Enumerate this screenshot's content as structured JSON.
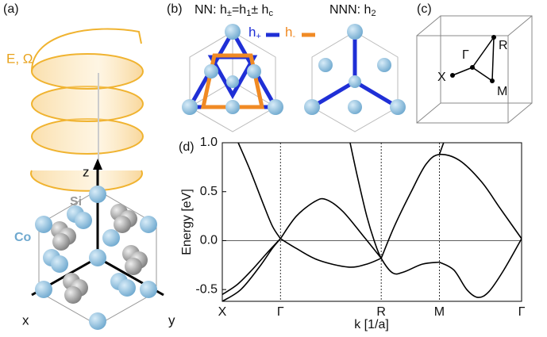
{
  "panels": {
    "a": {
      "label": "(a)",
      "field": "E, Ω",
      "z": "z",
      "x": "x",
      "y": "y",
      "si": "Si",
      "co": "Co"
    },
    "b": {
      "label": "(b)",
      "nn": [
        "NN: h",
        "±",
        "=h",
        "1",
        "± h",
        "c"
      ],
      "hplus": [
        "h",
        "+"
      ],
      "hminus": [
        "h",
        "-"
      ],
      "nnn": [
        "NNN: h",
        "2"
      ]
    },
    "c": {
      "label": "(c)",
      "gamma": "Γ",
      "r": "R",
      "x": "X",
      "m": "M"
    },
    "d": {
      "label": "(d)"
    }
  },
  "chart_data": {
    "type": "line",
    "x_label": "k [1/a]",
    "y_label": "Energy [eV]",
    "xlim": [
      0,
      16.16
    ],
    "ylim": [
      -0.62,
      1.0
    ],
    "xticks": [
      {
        "value": 0,
        "label": "X"
      },
      {
        "value": 3.14,
        "label": "Γ"
      },
      {
        "value": 8.58,
        "label": "R"
      },
      {
        "value": 11.72,
        "label": "M"
      },
      {
        "value": 16.16,
        "label": "Γ"
      }
    ],
    "yticks": [
      -0.5,
      {
        "value": 0,
        "label": "0.0"
      },
      0.5,
      {
        "value": 1,
        "label": "1.0"
      }
    ],
    "xgrid": true,
    "zero_line": true,
    "series": [
      {
        "color": "#000000",
        "x": [
          0.86,
          1.5,
          2.2,
          2.7,
          3.14
        ],
        "values": [
          1.0,
          0.72,
          0.38,
          0.15,
          0.02
        ]
      },
      {
        "color": "#000000",
        "x": [
          0,
          0.8,
          1.6,
          2.4,
          3.14
        ],
        "values": [
          -0.55,
          -0.45,
          -0.3,
          -0.13,
          0.02
        ]
      },
      {
        "color": "#000000",
        "x": [
          0,
          1.0,
          2.0,
          2.7,
          3.14
        ],
        "values": [
          -0.62,
          -0.5,
          -0.27,
          -0.08,
          0.02
        ]
      },
      {
        "color": "#000000",
        "x": [
          3.14,
          4.0,
          5.0,
          5.6,
          6.5,
          7.6,
          8.58
        ],
        "values": [
          0.02,
          0.25,
          0.4,
          0.42,
          0.3,
          0.05,
          -0.18
        ]
      },
      {
        "color": "#000000",
        "x": [
          3.14,
          4.0,
          5.2,
          6.8,
          7.8,
          8.58
        ],
        "values": [
          0.02,
          -0.08,
          -0.2,
          -0.27,
          -0.24,
          -0.18
        ]
      },
      {
        "color": "#000000",
        "x": [
          6.9,
          7.3,
          7.8,
          8.2,
          8.58,
          9.2,
          9.8,
          10.8,
          11.72
        ],
        "values": [
          1.0,
          0.65,
          0.25,
          0.0,
          -0.18,
          -0.33,
          -0.32,
          -0.24,
          -0.22
        ]
      },
      {
        "color": "#000000",
        "x": [
          8.58,
          9.3,
          10.2,
          11.0,
          11.72,
          12.8,
          14.0,
          15.0,
          16.16
        ],
        "values": [
          -0.18,
          0.15,
          0.5,
          0.78,
          0.88,
          0.82,
          0.6,
          0.33,
          0.02
        ]
      },
      {
        "color": "#000000",
        "x": [
          11.72,
          12.5,
          13.2,
          13.8,
          14.4,
          15.2,
          16.16
        ],
        "values": [
          -0.22,
          -0.3,
          -0.5,
          -0.58,
          -0.52,
          -0.3,
          0.02
        ]
      },
      {
        "color": "#000000",
        "x": [
          11.72,
          11.95
        ],
        "values": [
          0.88,
          1.0
        ]
      }
    ]
  }
}
